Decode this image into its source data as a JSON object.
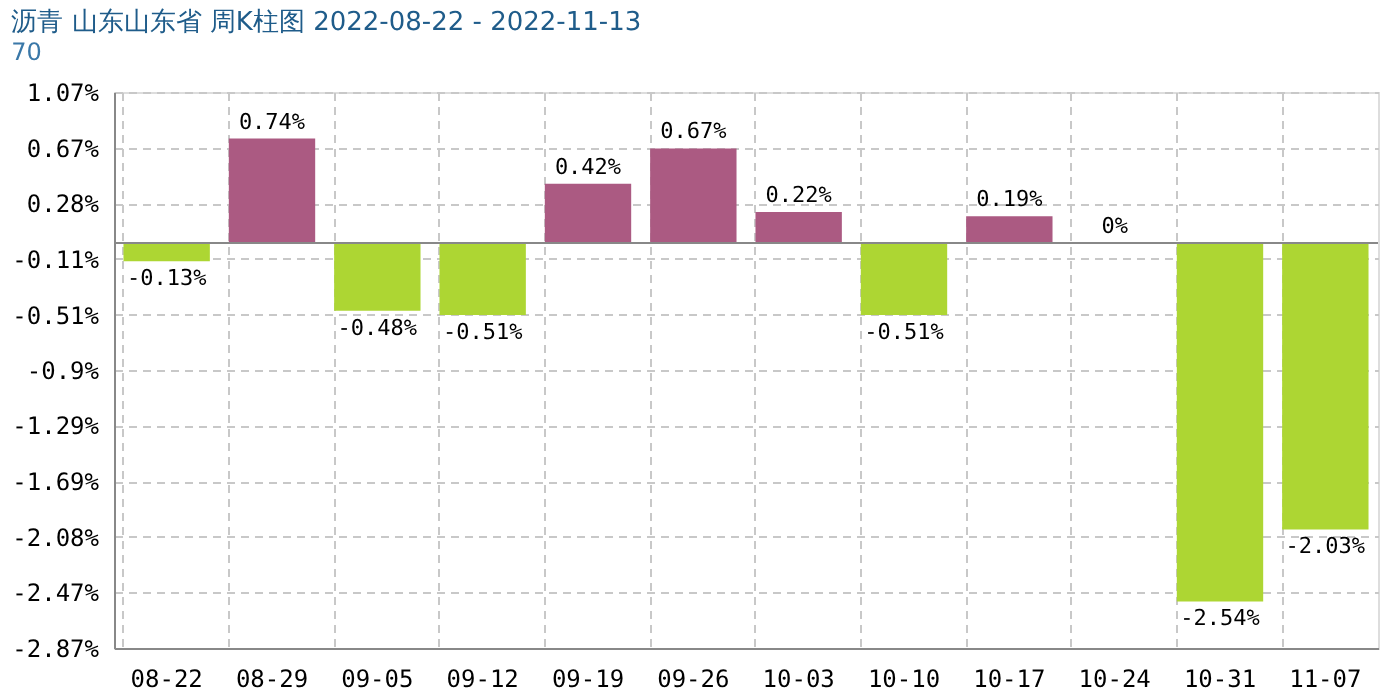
{
  "chart_data": {
    "type": "bar",
    "title": "沥青 山东山东省 周K柱图 2022-08-22 - 2022-11-13",
    "subtitle": "70",
    "categories": [
      "08-22",
      "08-29",
      "09-05",
      "09-12",
      "09-19",
      "09-26",
      "10-03",
      "10-10",
      "10-17",
      "10-24",
      "10-31",
      "11-07"
    ],
    "values": [
      -0.13,
      0.74,
      -0.48,
      -0.51,
      0.42,
      0.67,
      0.22,
      -0.51,
      0.19,
      0,
      -2.54,
      -2.03
    ],
    "colors": [
      "#add633",
      "#ab5a82",
      "#add633",
      "#add633",
      "#ab5a82",
      "#ab5a82",
      "#ab5a82",
      "#add633",
      "#ab5a82",
      "#ab5a82",
      "#add633",
      "#add633"
    ],
    "value_labels": [
      "-0.13%",
      "0.74%",
      "-0.48%",
      "-0.51%",
      "0.42%",
      "0.67%",
      "0.22%",
      "-0.51%",
      "0.19%",
      "0%",
      "-2.54%",
      "-2.03%"
    ],
    "ylim": [
      -2.87,
      1.07
    ],
    "yticks": [
      {
        "value": 1.07,
        "label": "1.07%"
      },
      {
        "value": 0.67,
        "label": "0.67%"
      },
      {
        "value": 0.28,
        "label": "0.28%"
      },
      {
        "value": -0.11,
        "label": "-0.11%"
      },
      {
        "value": -0.51,
        "label": "-0.51%"
      },
      {
        "value": -0.9,
        "label": "-0.9%"
      },
      {
        "value": -1.29,
        "label": "-1.29%"
      },
      {
        "value": -1.69,
        "label": "-1.69%"
      },
      {
        "value": -2.08,
        "label": "-2.08%"
      },
      {
        "value": -2.47,
        "label": "-2.47%"
      },
      {
        "value": -2.87,
        "label": "-2.87%"
      }
    ],
    "grid": true
  }
}
